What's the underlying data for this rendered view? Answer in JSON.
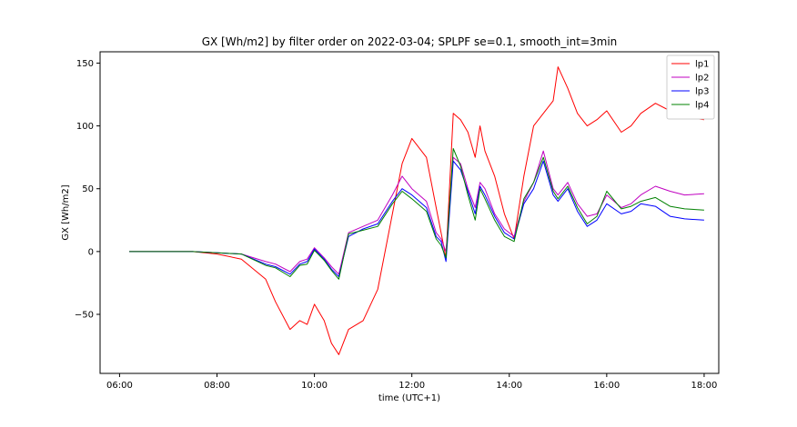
{
  "chart_data": {
    "type": "line",
    "title": "GX [Wh/m2] by filter order on 2022-03-04; SPLPF se=0.1, smooth_int=3min",
    "xlabel": "time (UTC+1)",
    "ylabel": "GX [Wh/m2]",
    "xlim": [
      5.6,
      18.3
    ],
    "ylim": [
      -97,
      159
    ],
    "xticks": [
      6,
      8,
      10,
      12,
      14,
      16,
      18
    ],
    "xtick_labels": [
      "06:00",
      "08:00",
      "10:00",
      "12:00",
      "14:00",
      "16:00",
      "18:00"
    ],
    "yticks": [
      -50,
      0,
      50,
      100,
      150
    ],
    "ytick_labels": [
      "−50",
      "0",
      "50",
      "100",
      "150"
    ],
    "legend_position": "top-right",
    "x": [
      6.2,
      7.0,
      7.5,
      8.0,
      8.5,
      9.0,
      9.2,
      9.5,
      9.7,
      9.85,
      10.0,
      10.2,
      10.35,
      10.5,
      10.7,
      11.0,
      11.3,
      11.6,
      11.8,
      12.0,
      12.3,
      12.5,
      12.6,
      12.7,
      12.85,
      13.0,
      13.15,
      13.3,
      13.4,
      13.5,
      13.7,
      13.9,
      14.1,
      14.3,
      14.5,
      14.7,
      14.9,
      15.0,
      15.2,
      15.4,
      15.6,
      15.8,
      16.0,
      16.3,
      16.5,
      16.7,
      17.0,
      17.3,
      17.6,
      18.0
    ],
    "series": [
      {
        "name": "lp1",
        "color": "#ff0000",
        "values": [
          0,
          0,
          0,
          -2,
          -6,
          -22,
          -40,
          -62,
          -55,
          -58,
          -42,
          -55,
          -73,
          -82,
          -62,
          -55,
          -30,
          30,
          70,
          90,
          75,
          35,
          15,
          -5,
          110,
          105,
          95,
          75,
          100,
          80,
          60,
          30,
          10,
          60,
          100,
          110,
          120,
          147,
          130,
          110,
          100,
          105,
          112,
          95,
          100,
          110,
          118,
          112,
          107,
          105
        ]
      },
      {
        "name": "lp2",
        "color": "#c000c0",
        "values": [
          0,
          0,
          0,
          -1,
          -2,
          -8,
          -10,
          -16,
          -8,
          -6,
          3,
          -5,
          -12,
          -18,
          15,
          20,
          25,
          45,
          60,
          50,
          40,
          15,
          10,
          0,
          75,
          70,
          50,
          35,
          55,
          50,
          30,
          18,
          12,
          40,
          55,
          80,
          50,
          45,
          55,
          38,
          28,
          30,
          45,
          35,
          38,
          45,
          52,
          48,
          45,
          46
        ]
      },
      {
        "name": "lp3",
        "color": "#0000ff",
        "values": [
          0,
          0,
          0,
          -1,
          -2,
          -10,
          -12,
          -18,
          -10,
          -8,
          2,
          -6,
          -14,
          -20,
          12,
          18,
          22,
          40,
          50,
          45,
          35,
          12,
          8,
          -8,
          72,
          65,
          48,
          30,
          52,
          45,
          28,
          15,
          10,
          38,
          50,
          72,
          45,
          40,
          50,
          32,
          20,
          25,
          38,
          30,
          32,
          38,
          36,
          28,
          26,
          25
        ]
      },
      {
        "name": "lp4",
        "color": "#008000",
        "values": [
          0,
          0,
          0,
          -1,
          -2,
          -11,
          -13,
          -20,
          -11,
          -10,
          1,
          -7,
          -15,
          -22,
          14,
          17,
          20,
          38,
          48,
          42,
          32,
          10,
          5,
          -5,
          82,
          68,
          45,
          25,
          50,
          42,
          25,
          12,
          8,
          42,
          55,
          75,
          48,
          42,
          52,
          35,
          22,
          28,
          48,
          34,
          36,
          40,
          43,
          36,
          34,
          33
        ]
      }
    ]
  }
}
